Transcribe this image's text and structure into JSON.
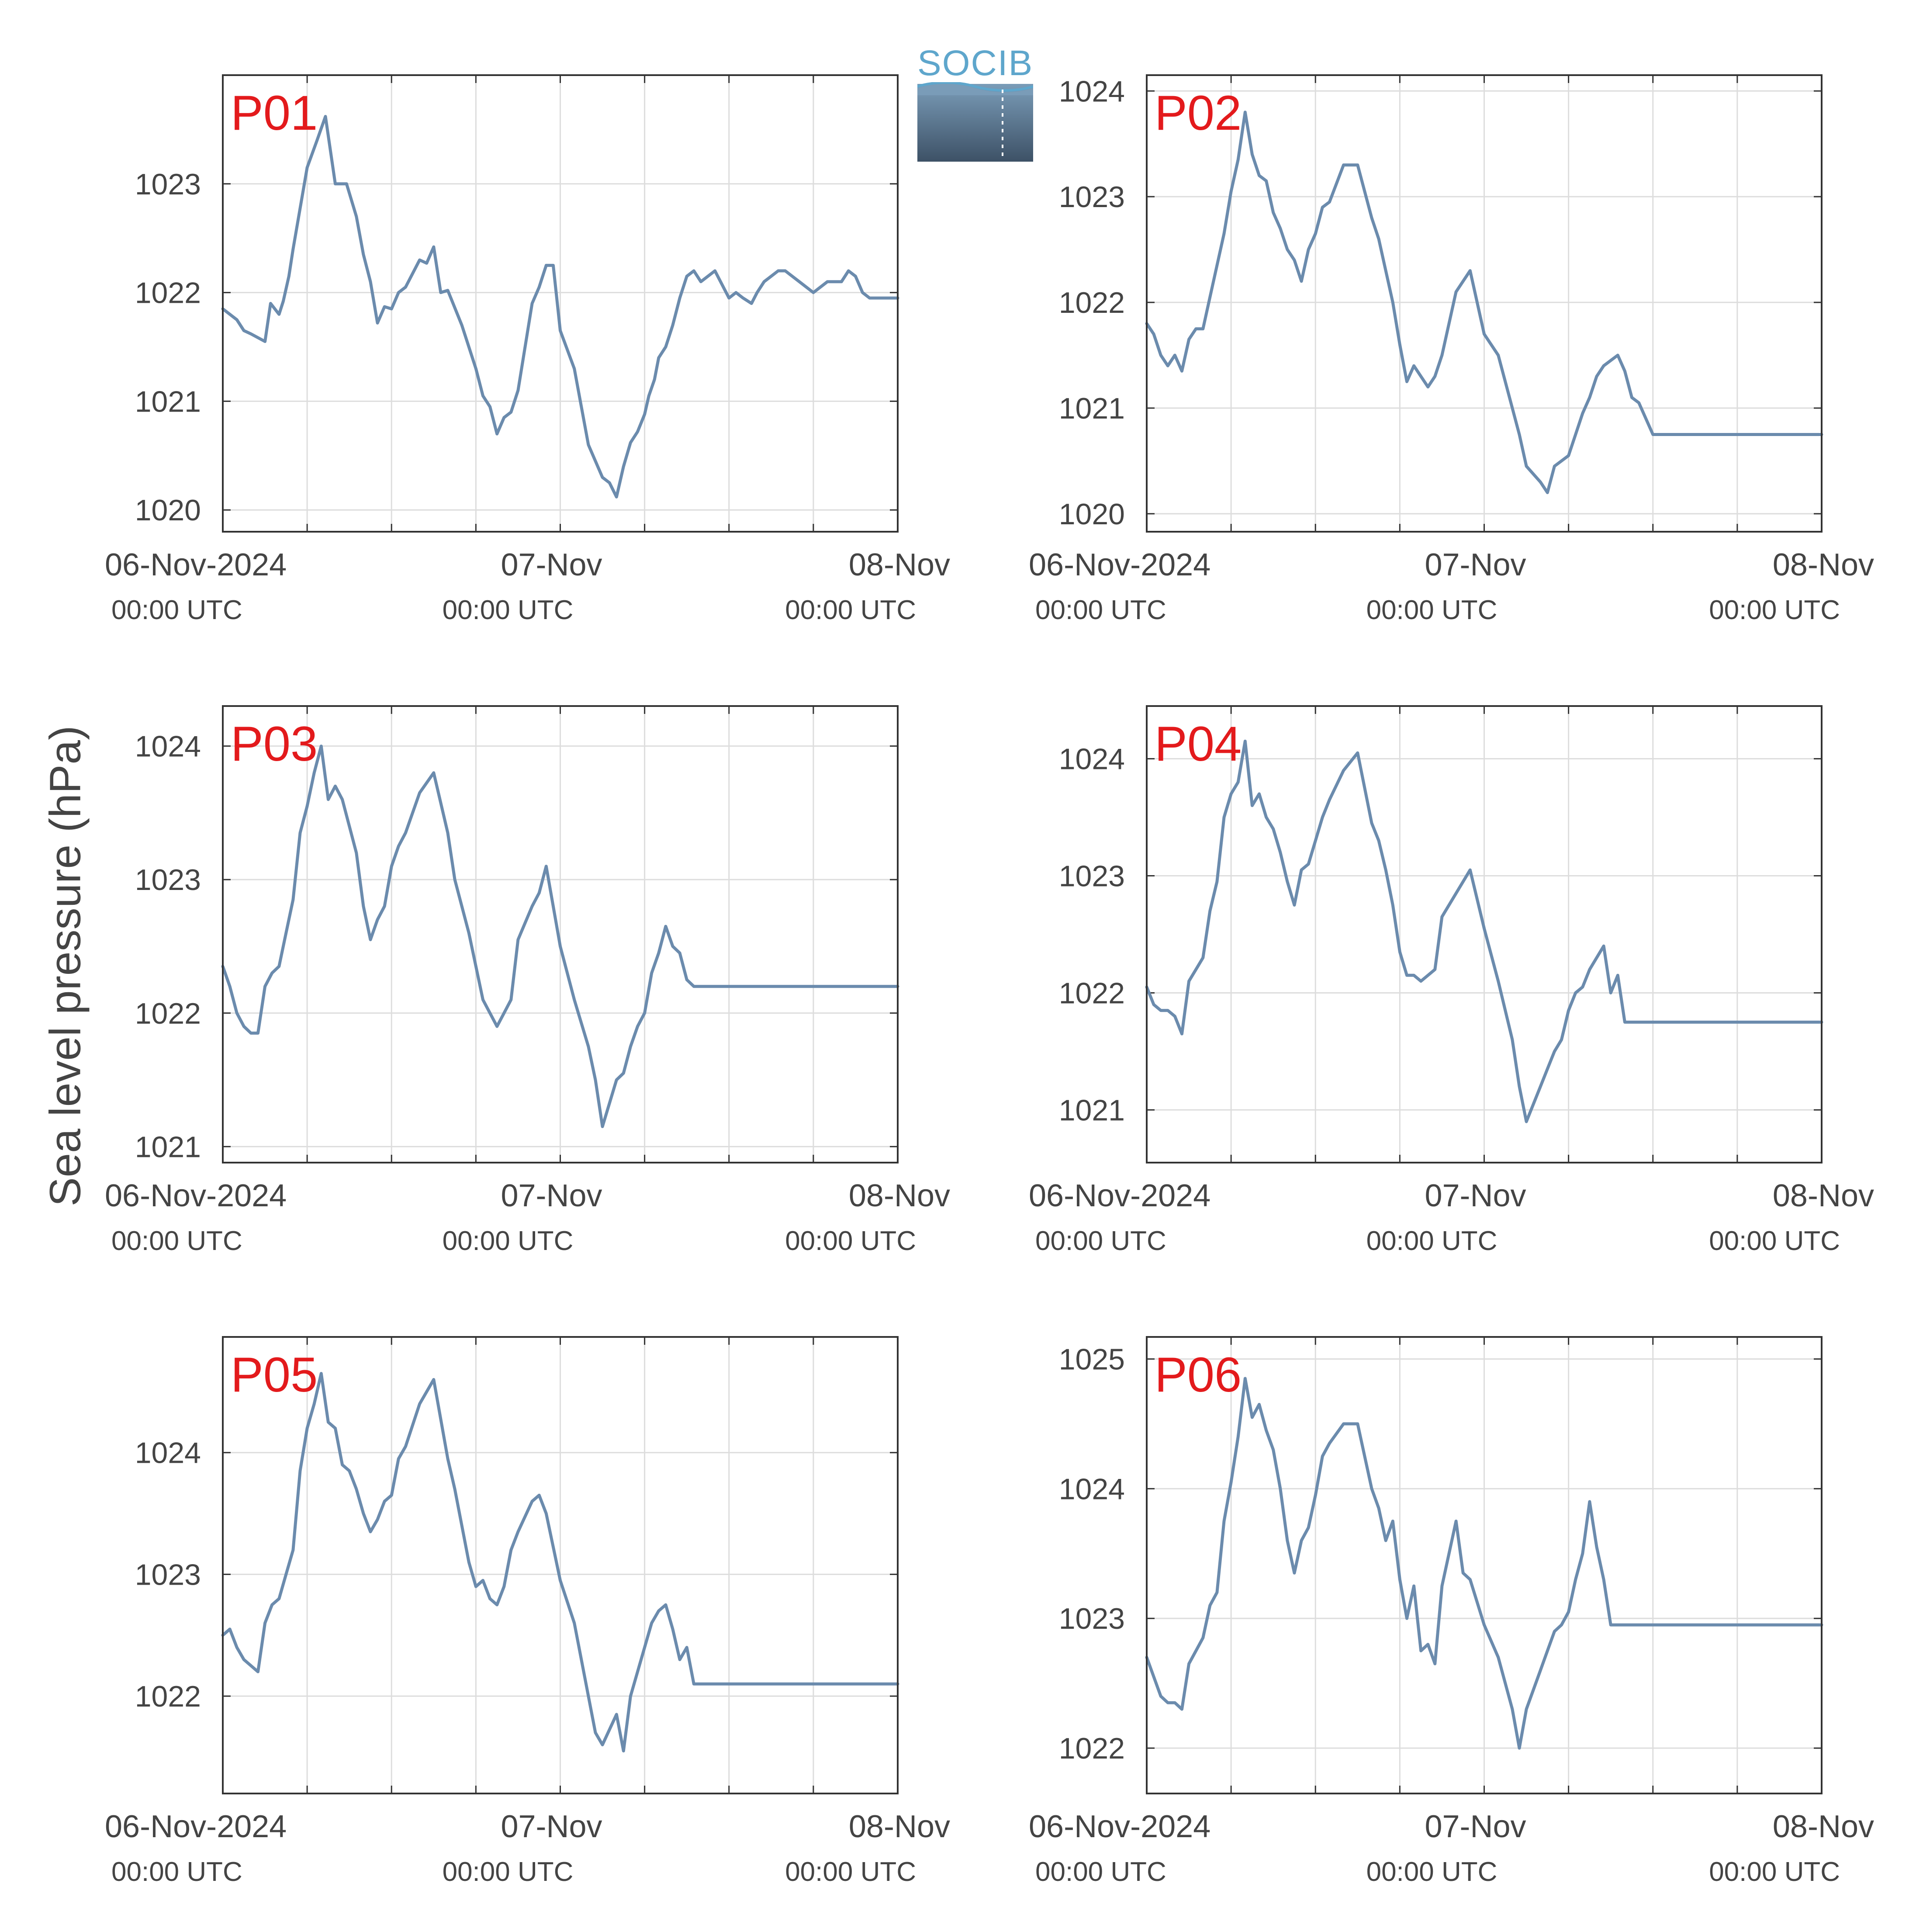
{
  "figure": {
    "ylabel": "Sea level pressure (hPa)",
    "logo_text": "SOCIB",
    "line_color": "#6b8bad",
    "label_color": "#e31a1c"
  },
  "chart_data": [
    {
      "type": "line",
      "label": "P01",
      "xlim": [
        0,
        48
      ],
      "ylim": [
        1019.8,
        1024.0
      ],
      "yticks": [
        1020,
        1021,
        1022,
        1023
      ],
      "xticks": [
        0,
        6,
        12,
        18,
        24,
        30,
        36,
        42,
        48
      ],
      "xtick_labels": [
        {
          "x": 0,
          "date": "06-Nov-2024",
          "time": "00:00 UTC"
        },
        {
          "x": 24,
          "date": "07-Nov",
          "time": "00:00 UTC"
        },
        {
          "x": 48,
          "date": "08-Nov",
          "time": "00:00 UTC"
        }
      ],
      "x": [
        0,
        1,
        1.5,
        2,
        3,
        3.4,
        4,
        4.3,
        4.7,
        5,
        6,
        6.7,
        7.3,
        8,
        8.8,
        9.5,
        10,
        10.5,
        11,
        11.5,
        12,
        12.5,
        13,
        14,
        14.5,
        15,
        15.5,
        16,
        17,
        18,
        18.5,
        19,
        19.5,
        20,
        20.5,
        21,
        22,
        22.5,
        23,
        23.5,
        24,
        25,
        25.5,
        26,
        27,
        27.5,
        28,
        28.5,
        29,
        29.5,
        30,
        30.3,
        30.7,
        31,
        31.5,
        32,
        32.5,
        33,
        33.5,
        34,
        35,
        36,
        36.5,
        37,
        37.6,
        38,
        38.5,
        39,
        39.5,
        40,
        41,
        42,
        43,
        44,
        44.5,
        45,
        45.5,
        46,
        46.5,
        47,
        47.5,
        48
      ],
      "values": [
        1021.85,
        1021.75,
        1021.65,
        1021.62,
        1021.55,
        1021.9,
        1021.8,
        1021.92,
        1022.15,
        1022.4,
        1023.15,
        1023.4,
        1023.62,
        1023.0,
        1023.0,
        1022.7,
        1022.35,
        1022.1,
        1021.72,
        1021.87,
        1021.85,
        1022.0,
        1022.05,
        1022.3,
        1022.27,
        1022.42,
        1022.0,
        1022.02,
        1021.7,
        1021.3,
        1021.05,
        1020.95,
        1020.7,
        1020.85,
        1020.9,
        1021.1,
        1021.9,
        1022.05,
        1022.25,
        1022.25,
        1021.65,
        1021.3,
        1020.95,
        1020.6,
        1020.3,
        1020.25,
        1020.12,
        1020.4,
        1020.62,
        1020.72,
        1020.88,
        1021.05,
        1021.2,
        1021.4,
        1021.5,
        1021.7,
        1021.95,
        1022.15,
        1022.2,
        1022.1,
        1022.2,
        1021.95,
        1022.0,
        1021.95,
        1021.9,
        1022.0,
        1022.1,
        1022.15,
        1022.2,
        1022.2,
        1022.1,
        1022.0,
        1022.1,
        1022.1,
        1022.2,
        1022.15,
        1022.0,
        1021.95,
        1021.95,
        1021.95,
        1021.95,
        1021.95
      ]
    },
    {
      "type": "line",
      "label": "P02",
      "xlim": [
        0,
        48
      ],
      "ylim": [
        1019.83,
        1024.15
      ],
      "yticks": [
        1020,
        1021,
        1022,
        1023,
        1024
      ],
      "xticks": [
        0,
        6,
        12,
        18,
        24,
        30,
        36,
        42,
        48
      ],
      "xtick_labels": [
        {
          "x": 0,
          "date": "06-Nov-2024",
          "time": "00:00 UTC"
        },
        {
          "x": 24,
          "date": "07-Nov",
          "time": "00:00 UTC"
        },
        {
          "x": 48,
          "date": "08-Nov",
          "time": "00:00 UTC"
        }
      ],
      "x": [
        0,
        0.5,
        1,
        1.5,
        2,
        2.5,
        3,
        3.5,
        4,
        4.5,
        5,
        5.5,
        6,
        6.5,
        7,
        7.5,
        8,
        8.5,
        9,
        9.5,
        10,
        10.5,
        11,
        11.5,
        12,
        12.5,
        13,
        14,
        15,
        16,
        16.5,
        17,
        17.5,
        18,
        18.5,
        19,
        19.5,
        20,
        20.5,
        21,
        22,
        22.5,
        23,
        24,
        25,
        26,
        26.5,
        27,
        28,
        28.5,
        29,
        29.5,
        30,
        30.5,
        31,
        31.5,
        32,
        32.5,
        33,
        33.5,
        34,
        34.5,
        35,
        36,
        36.5,
        37,
        37.5,
        38,
        38.5,
        39,
        39.5,
        40,
        41,
        42,
        42.5,
        43,
        43.5,
        44,
        44.5,
        45,
        45.5,
        46,
        46.5,
        47,
        47.5,
        48
      ],
      "values": [
        1021.8,
        1021.7,
        1021.5,
        1021.4,
        1021.5,
        1021.35,
        1021.65,
        1021.75,
        1021.75,
        1022.05,
        1022.35,
        1022.65,
        1023.05,
        1023.35,
        1023.8,
        1023.4,
        1023.2,
        1023.15,
        1022.85,
        1022.7,
        1022.5,
        1022.4,
        1022.2,
        1022.5,
        1022.65,
        1022.9,
        1022.95,
        1023.3,
        1023.3,
        1022.8,
        1022.6,
        1022.3,
        1022.0,
        1021.6,
        1021.25,
        1021.4,
        1021.3,
        1021.2,
        1021.3,
        1021.5,
        1022.1,
        1022.2,
        1022.3,
        1021.7,
        1021.5,
        1021.0,
        1020.75,
        1020.45,
        1020.3,
        1020.2,
        1020.45,
        1020.5,
        1020.55,
        1020.75,
        1020.95,
        1021.1,
        1021.3,
        1021.4,
        1021.45,
        1021.5,
        1021.35,
        1021.1,
        1021.05,
        1020.75,
        1020.75,
        1020.75,
        1020.75,
        1020.75,
        1020.75,
        1020.75,
        1020.75,
        1020.75,
        1020.75,
        1020.75,
        1020.75,
        1020.75,
        1020.75,
        1020.75,
        1020.75,
        1020.75,
        1020.75,
        1020.75,
        1020.75,
        1020.75,
        1020.75,
        1020.75
      ]
    },
    {
      "type": "line",
      "label": "P03",
      "xlim": [
        0,
        48
      ],
      "ylim": [
        1020.88,
        1024.3
      ],
      "yticks": [
        1021,
        1022,
        1023,
        1024
      ],
      "xticks": [
        0,
        6,
        12,
        18,
        24,
        30,
        36,
        42,
        48
      ],
      "xtick_labels": [
        {
          "x": 0,
          "date": "06-Nov-2024",
          "time": "00:00 UTC"
        },
        {
          "x": 24,
          "date": "07-Nov",
          "time": "00:00 UTC"
        },
        {
          "x": 48,
          "date": "08-Nov",
          "time": "00:00 UTC"
        }
      ],
      "x": [
        0,
        0.5,
        1,
        1.5,
        2,
        2.5,
        3,
        3.5,
        4,
        4.5,
        5,
        5.5,
        6,
        6.5,
        7,
        7.5,
        8,
        8.5,
        9,
        9.5,
        10,
        10.5,
        11,
        11.5,
        12,
        12.5,
        13,
        14,
        15,
        16,
        16.5,
        17,
        17.5,
        18,
        18.5,
        19,
        19.5,
        20,
        20.5,
        21,
        22,
        22.5,
        23,
        24,
        25,
        26,
        26.5,
        27,
        28,
        28.5,
        29,
        29.5,
        30,
        30.5,
        31,
        31.5,
        32,
        32.5,
        33,
        33.5,
        34,
        34.5,
        35,
        36,
        36.5,
        37,
        37.5,
        38,
        38.5,
        39,
        39.5,
        40,
        41,
        42,
        42.5,
        43,
        43.5,
        44,
        44.5,
        45,
        45.5,
        46,
        46.5,
        47,
        47.5,
        48
      ],
      "values": [
        1022.35,
        1022.2,
        1022.0,
        1021.9,
        1021.85,
        1021.85,
        1022.2,
        1022.3,
        1022.35,
        1022.6,
        1022.85,
        1023.35,
        1023.55,
        1023.8,
        1024.0,
        1023.6,
        1023.7,
        1023.6,
        1023.4,
        1023.2,
        1022.8,
        1022.55,
        1022.7,
        1022.8,
        1023.1,
        1023.25,
        1023.35,
        1023.65,
        1023.8,
        1023.35,
        1023.0,
        1022.8,
        1022.6,
        1022.35,
        1022.1,
        1022.0,
        1021.9,
        1022.0,
        1022.1,
        1022.55,
        1022.8,
        1022.9,
        1023.1,
        1022.5,
        1022.1,
        1021.75,
        1021.5,
        1021.15,
        1021.5,
        1021.55,
        1021.75,
        1021.9,
        1022.0,
        1022.3,
        1022.45,
        1022.65,
        1022.5,
        1022.45,
        1022.25,
        1022.2,
        1022.2,
        1022.2,
        1022.2,
        1022.2,
        1022.2,
        1022.2,
        1022.2,
        1022.2,
        1022.2,
        1022.2,
        1022.2,
        1022.2,
        1022.2,
        1022.2,
        1022.2,
        1022.2,
        1022.2,
        1022.2,
        1022.2,
        1022.2,
        1022.2,
        1022.2,
        1022.2,
        1022.2,
        1022.2,
        1022.2
      ]
    },
    {
      "type": "line",
      "label": "P04",
      "xlim": [
        0,
        48
      ],
      "ylim": [
        1020.55,
        1024.45
      ],
      "yticks": [
        1021,
        1022,
        1023,
        1024
      ],
      "xticks": [
        0,
        6,
        12,
        18,
        24,
        30,
        36,
        42,
        48
      ],
      "xtick_labels": [
        {
          "x": 0,
          "date": "06-Nov-2024",
          "time": "00:00 UTC"
        },
        {
          "x": 24,
          "date": "07-Nov",
          "time": "00:00 UTC"
        },
        {
          "x": 48,
          "date": "08-Nov",
          "time": "00:00 UTC"
        }
      ],
      "x": [
        0,
        0.5,
        1,
        1.5,
        2,
        2.5,
        3,
        3.5,
        4,
        4.5,
        5,
        5.5,
        6,
        6.5,
        7,
        7.5,
        8,
        8.5,
        9,
        9.5,
        10,
        10.5,
        11,
        11.5,
        12,
        12.5,
        13,
        14,
        15,
        16,
        16.5,
        17,
        17.5,
        18,
        18.5,
        19,
        19.5,
        20,
        20.5,
        21,
        22,
        22.5,
        23,
        24,
        25,
        26,
        26.5,
        27,
        28,
        28.5,
        29,
        29.5,
        30,
        30.5,
        31,
        31.5,
        32,
        32.5,
        33,
        33.5,
        34,
        34.5,
        35,
        36,
        36.5,
        37,
        37.5,
        38,
        38.5,
        39,
        39.5,
        40,
        41,
        42,
        42.5,
        43,
        43.5,
        44,
        44.5,
        45,
        45.5,
        46,
        46.5,
        47,
        47.5,
        48
      ],
      "values": [
        1022.05,
        1021.9,
        1021.85,
        1021.85,
        1021.8,
        1021.65,
        1022.1,
        1022.2,
        1022.3,
        1022.7,
        1022.95,
        1023.5,
        1023.7,
        1023.8,
        1024.15,
        1023.6,
        1023.7,
        1023.5,
        1023.4,
        1023.2,
        1022.95,
        1022.75,
        1023.05,
        1023.1,
        1023.3,
        1023.5,
        1023.65,
        1023.9,
        1024.05,
        1023.45,
        1023.3,
        1023.05,
        1022.75,
        1022.35,
        1022.15,
        1022.15,
        1022.1,
        1022.15,
        1022.2,
        1022.65,
        1022.85,
        1022.95,
        1023.05,
        1022.55,
        1022.1,
        1021.6,
        1021.2,
        1020.9,
        1021.2,
        1021.35,
        1021.5,
        1021.6,
        1021.85,
        1022.0,
        1022.05,
        1022.2,
        1022.3,
        1022.4,
        1022.0,
        1022.15,
        1021.75,
        1021.75,
        1021.75,
        1021.75,
        1021.75,
        1021.75,
        1021.75,
        1021.75,
        1021.75,
        1021.75,
        1021.75,
        1021.75,
        1021.75,
        1021.75,
        1021.75,
        1021.75,
        1021.75,
        1021.75,
        1021.75,
        1021.75,
        1021.75,
        1021.75,
        1021.75,
        1021.75,
        1021.75,
        1021.75
      ]
    },
    {
      "type": "line",
      "label": "P05",
      "xlim": [
        0,
        48
      ],
      "ylim": [
        1021.2,
        1024.95
      ],
      "yticks": [
        1022,
        1023,
        1024
      ],
      "xticks": [
        0,
        6,
        12,
        18,
        24,
        30,
        36,
        42,
        48
      ],
      "xtick_labels": [
        {
          "x": 0,
          "date": "06-Nov-2024",
          "time": "00:00 UTC"
        },
        {
          "x": 24,
          "date": "07-Nov",
          "time": "00:00 UTC"
        },
        {
          "x": 48,
          "date": "08-Nov",
          "time": "00:00 UTC"
        }
      ],
      "x": [
        0,
        0.5,
        1,
        1.5,
        2,
        2.5,
        3,
        3.5,
        4,
        4.5,
        5,
        5.5,
        6,
        6.5,
        7,
        7.5,
        8,
        8.5,
        9,
        9.5,
        10,
        10.5,
        11,
        11.5,
        12,
        12.5,
        13,
        14,
        15,
        16,
        16.5,
        17,
        17.5,
        18,
        18.5,
        19,
        19.5,
        20,
        20.5,
        21,
        22,
        22.5,
        23,
        24,
        25,
        26,
        26.5,
        27,
        28,
        28.5,
        29,
        29.5,
        30,
        30.5,
        31,
        31.5,
        32,
        32.5,
        33,
        33.5,
        34,
        34.5,
        35,
        36,
        36.5,
        37,
        37.5,
        38,
        38.5,
        39,
        39.5,
        40,
        41,
        42,
        42.5,
        43,
        43.5,
        44,
        44.5,
        45,
        45.5,
        46,
        46.5,
        47,
        47.5,
        48
      ],
      "values": [
        1022.5,
        1022.55,
        1022.4,
        1022.3,
        1022.25,
        1022.2,
        1022.6,
        1022.75,
        1022.8,
        1023.0,
        1023.2,
        1023.85,
        1024.2,
        1024.4,
        1024.65,
        1024.25,
        1024.2,
        1023.9,
        1023.85,
        1023.7,
        1023.5,
        1023.35,
        1023.45,
        1023.6,
        1023.65,
        1023.95,
        1024.05,
        1024.4,
        1024.6,
        1023.95,
        1023.7,
        1023.4,
        1023.1,
        1022.9,
        1022.95,
        1022.8,
        1022.75,
        1022.9,
        1023.2,
        1023.35,
        1023.6,
        1023.65,
        1023.5,
        1022.95,
        1022.6,
        1022.0,
        1021.7,
        1021.6,
        1021.85,
        1021.55,
        1022.0,
        1022.2,
        1022.4,
        1022.6,
        1022.7,
        1022.75,
        1022.55,
        1022.3,
        1022.4,
        1022.1,
        1022.1,
        1022.1,
        1022.1,
        1022.1,
        1022.1,
        1022.1,
        1022.1,
        1022.1,
        1022.1,
        1022.1,
        1022.1,
        1022.1,
        1022.1,
        1022.1,
        1022.1,
        1022.1,
        1022.1,
        1022.1,
        1022.1,
        1022.1,
        1022.1,
        1022.1,
        1022.1,
        1022.1,
        1022.1,
        1022.1
      ]
    },
    {
      "type": "line",
      "label": "P06",
      "xlim": [
        0,
        48
      ],
      "ylim": [
        1021.65,
        1025.17
      ],
      "yticks": [
        1022,
        1023,
        1024,
        1025
      ],
      "xticks": [
        0,
        6,
        12,
        18,
        24,
        30,
        36,
        42,
        48
      ],
      "xtick_labels": [
        {
          "x": 0,
          "date": "06-Nov-2024",
          "time": "00:00 UTC"
        },
        {
          "x": 24,
          "date": "07-Nov",
          "time": "00:00 UTC"
        },
        {
          "x": 48,
          "date": "08-Nov",
          "time": "00:00 UTC"
        }
      ],
      "x": [
        0,
        0.5,
        1,
        1.5,
        2,
        2.5,
        3,
        3.5,
        4,
        4.5,
        5,
        5.5,
        6,
        6.5,
        7,
        7.5,
        8,
        8.5,
        9,
        9.5,
        10,
        10.5,
        11,
        11.5,
        12,
        12.5,
        13,
        14,
        15,
        16,
        16.5,
        17,
        17.5,
        18,
        18.5,
        19,
        19.5,
        20,
        20.5,
        21,
        22,
        22.5,
        23,
        24,
        25,
        26,
        26.5,
        27,
        28,
        28.5,
        29,
        29.5,
        30,
        30.5,
        31,
        31.5,
        32,
        32.5,
        33,
        33.5,
        34,
        34.5,
        35,
        36,
        36.5,
        37,
        37.5,
        38,
        38.5,
        39,
        39.5,
        40,
        41,
        42,
        42.5,
        43,
        43.5,
        44,
        44.5,
        45,
        45.5,
        46,
        46.5,
        47,
        47.5,
        48
      ],
      "values": [
        1022.7,
        1022.55,
        1022.4,
        1022.35,
        1022.35,
        1022.3,
        1022.65,
        1022.75,
        1022.85,
        1023.1,
        1023.2,
        1023.75,
        1024.05,
        1024.4,
        1024.85,
        1024.55,
        1024.65,
        1024.45,
        1024.3,
        1024.0,
        1023.6,
        1023.35,
        1023.6,
        1023.7,
        1023.95,
        1024.25,
        1024.35,
        1024.5,
        1024.5,
        1024.0,
        1023.85,
        1023.6,
        1023.75,
        1023.3,
        1023.0,
        1023.25,
        1022.75,
        1022.8,
        1022.65,
        1023.25,
        1023.75,
        1023.35,
        1023.3,
        1022.95,
        1022.7,
        1022.3,
        1022.0,
        1022.3,
        1022.6,
        1022.75,
        1022.9,
        1022.95,
        1023.05,
        1023.3,
        1023.5,
        1023.9,
        1023.55,
        1023.3,
        1022.95,
        1022.95,
        1022.95,
        1022.95,
        1022.95,
        1022.95,
        1022.95,
        1022.95,
        1022.95,
        1022.95,
        1022.95,
        1022.95,
        1022.95,
        1022.95,
        1022.95,
        1022.95,
        1022.95,
        1022.95,
        1022.95,
        1022.95,
        1022.95,
        1022.95,
        1022.95,
        1022.95,
        1022.95,
        1022.95,
        1022.95,
        1022.95
      ]
    }
  ]
}
